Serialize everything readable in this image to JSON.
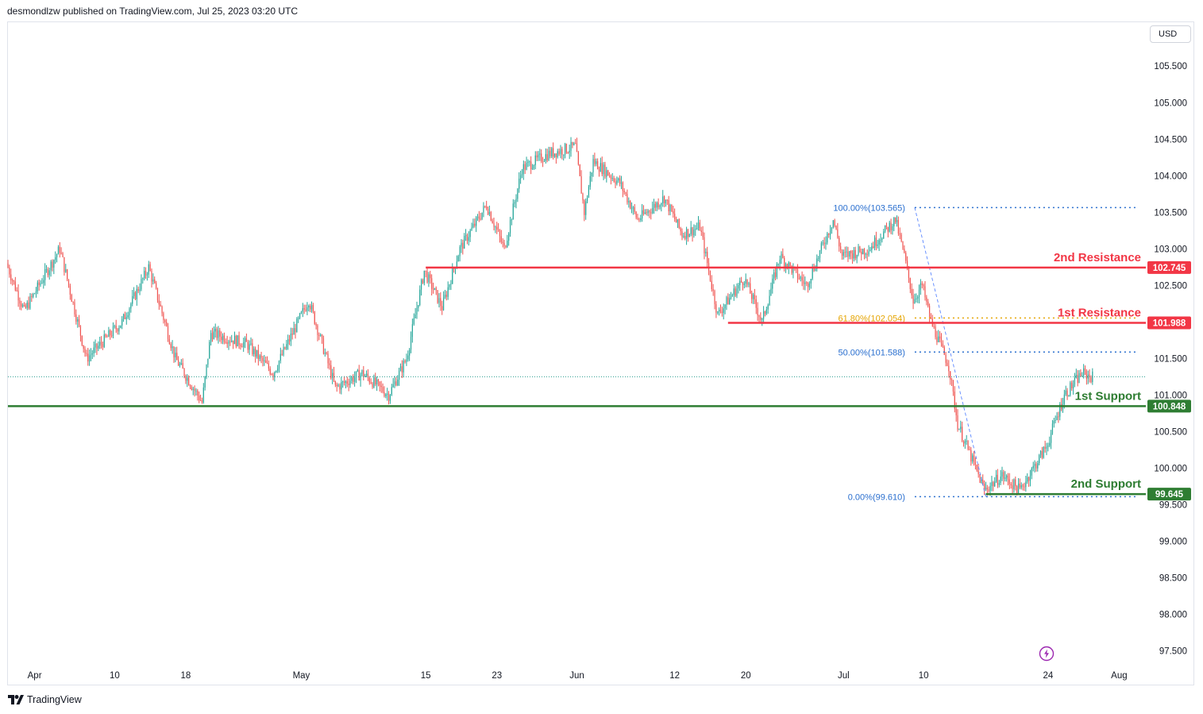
{
  "header": {
    "attribution": "desmondlzw published on TradingView.com, Jul 25, 2023 03:20 UTC"
  },
  "toolbar": {
    "currency": "USD"
  },
  "footer": {
    "brand": "TradingView"
  },
  "icons": {
    "logo": "tradingview-logo-icon",
    "bolt": "lightning-bolt-icon"
  },
  "colors": {
    "up": "#26a69a",
    "down": "#ef5350",
    "resistance": "#f23645",
    "support": "#2e7d32",
    "fib": "#2962ff",
    "fib_label": "#2a6fcf",
    "fib_618": "#e5a400",
    "grid_text": "#131722"
  },
  "chart_data": {
    "type": "candlestick",
    "symbol_currency": "USD",
    "x_ticks": [
      {
        "label": "Apr",
        "date": "2023-04-01"
      },
      {
        "label": "10",
        "date": "2023-04-10"
      },
      {
        "label": "18",
        "date": "2023-04-18"
      },
      {
        "label": "May",
        "date": "2023-05-01"
      },
      {
        "label": "15",
        "date": "2023-05-15"
      },
      {
        "label": "23",
        "date": "2023-05-23"
      },
      {
        "label": "Jun",
        "date": "2023-06-01"
      },
      {
        "label": "12",
        "date": "2023-06-12"
      },
      {
        "label": "20",
        "date": "2023-06-20"
      },
      {
        "label": "Jul",
        "date": "2023-07-01"
      },
      {
        "label": "10",
        "date": "2023-07-10"
      },
      {
        "label": "24",
        "date": "2023-07-24"
      },
      {
        "label": "Aug",
        "date": "2023-08-01"
      }
    ],
    "x_range": [
      "2023-03-29",
      "2023-08-04"
    ],
    "y_ticks": [
      "105.500",
      "105.000",
      "104.500",
      "104.000",
      "103.500",
      "103.000",
      "102.500",
      "101.500",
      "101.000",
      "100.500",
      "100.000",
      "99.500",
      "99.000",
      "98.500",
      "98.000",
      "97.500"
    ],
    "y_range": [
      97.3,
      106.1
    ],
    "last_price": 101.25,
    "price_path": [
      [
        "2023-03-29",
        102.8
      ],
      [
        "2023-03-31",
        102.15
      ],
      [
        "2023-04-04",
        103.0
      ],
      [
        "2023-04-07",
        101.5
      ],
      [
        "2023-04-11",
        102.0
      ],
      [
        "2023-04-14",
        102.75
      ],
      [
        "2023-04-17",
        101.5
      ],
      [
        "2023-04-20",
        100.9
      ],
      [
        "2023-04-21",
        101.85
      ],
      [
        "2023-04-25",
        101.7
      ],
      [
        "2023-04-28",
        101.3
      ],
      [
        "2023-05-02",
        102.3
      ],
      [
        "2023-05-05",
        101.1
      ],
      [
        "2023-05-08",
        101.3
      ],
      [
        "2023-05-11",
        101.0
      ],
      [
        "2023-05-13",
        101.5
      ],
      [
        "2023-05-15",
        102.7
      ],
      [
        "2023-05-17",
        102.2
      ],
      [
        "2023-05-19",
        103.0
      ],
      [
        "2023-05-22",
        103.6
      ],
      [
        "2023-05-24",
        103.0
      ],
      [
        "2023-05-26",
        104.1
      ],
      [
        "2023-05-29",
        104.3
      ],
      [
        "2023-06-01",
        104.4
      ],
      [
        "2023-06-02",
        103.5
      ],
      [
        "2023-06-03",
        104.2
      ],
      [
        "2023-06-06",
        103.9
      ],
      [
        "2023-06-08",
        103.4
      ],
      [
        "2023-06-11",
        103.7
      ],
      [
        "2023-06-13",
        103.2
      ],
      [
        "2023-06-15",
        103.3
      ],
      [
        "2023-06-16",
        102.7
      ],
      [
        "2023-06-17",
        102.1
      ],
      [
        "2023-06-20",
        102.6
      ],
      [
        "2023-06-22",
        102.0
      ],
      [
        "2023-06-24",
        102.9
      ],
      [
        "2023-06-27",
        102.5
      ],
      [
        "2023-06-30",
        103.4
      ],
      [
        "2023-07-01",
        102.9
      ],
      [
        "2023-07-04",
        103.0
      ],
      [
        "2023-07-07",
        103.4
      ],
      [
        "2023-07-08",
        102.9
      ],
      [
        "2023-07-09",
        102.3
      ],
      [
        "2023-07-10",
        102.5
      ],
      [
        "2023-07-11",
        102.0
      ],
      [
        "2023-07-13",
        101.4
      ],
      [
        "2023-07-14",
        100.6
      ],
      [
        "2023-07-17",
        99.7
      ],
      [
        "2023-07-19",
        99.9
      ],
      [
        "2023-07-21",
        99.7
      ],
      [
        "2023-07-24",
        100.3
      ],
      [
        "2023-07-26",
        101.0
      ],
      [
        "2023-07-28",
        101.3
      ],
      [
        "2023-07-29",
        101.25
      ]
    ],
    "levels": [
      {
        "name": "2nd Resistance",
        "value": 102.745,
        "label": "102.745",
        "kind": "resistance",
        "from": "2023-05-15"
      },
      {
        "name": "1st Resistance",
        "value": 101.988,
        "label": "101.988",
        "kind": "resistance",
        "from": "2023-06-18"
      },
      {
        "name": "1st Support",
        "value": 100.848,
        "label": "100.848",
        "kind": "support",
        "from": "2023-03-29"
      },
      {
        "name": "2nd Support",
        "value": 99.645,
        "label": "99.645",
        "kind": "support",
        "from": "2023-07-17"
      }
    ],
    "fibonacci": [
      {
        "label": "100.00%(103.565)",
        "value": 103.565,
        "kind": "fib"
      },
      {
        "label": "61.80%(102.054)",
        "value": 102.054,
        "kind": "fib_618"
      },
      {
        "label": "50.00%(101.588)",
        "value": 101.588,
        "kind": "fib"
      },
      {
        "label": "0.00%(99.610)",
        "value": 99.61,
        "kind": "fib"
      }
    ],
    "fib_anchor": {
      "from": "2023-07-09",
      "to": "2023-07-17",
      "line_start": "2023-07-09",
      "line_end": "2023-08-03"
    }
  }
}
